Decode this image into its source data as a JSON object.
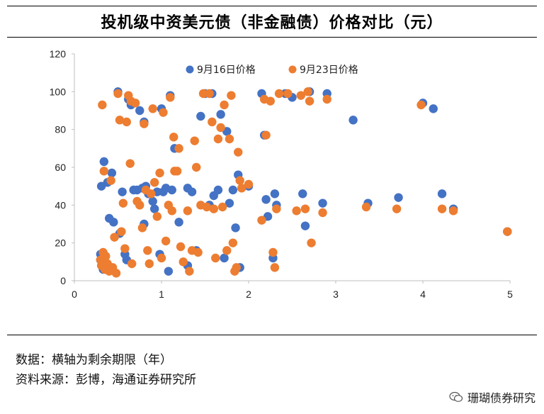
{
  "figure": {
    "title": "投机级中资美元债（非金融债）价格对比（元）",
    "note_data": "数据：横轴为剩余期限（年）",
    "note_source": "资料来源：彭博，海通证券研究所",
    "watermark": "珊瑚债券研究"
  },
  "chart_data": {
    "type": "scatter",
    "xlim": [
      0,
      5
    ],
    "ylim": [
      0,
      120
    ],
    "x_ticks": [
      0,
      1,
      2,
      3,
      4,
      5
    ],
    "y_ticks": [
      0,
      20,
      40,
      60,
      80,
      100,
      120
    ],
    "grid": false,
    "legend_position": "top-center",
    "series": [
      {
        "name": "9月16日价格",
        "color": "#4472C4",
        "points": [
          [
            0.3,
            14
          ],
          [
            0.3,
            11
          ],
          [
            0.31,
            50
          ],
          [
            0.32,
            8
          ],
          [
            0.33,
            6
          ],
          [
            0.34,
            63
          ],
          [
            0.36,
            6
          ],
          [
            0.38,
            52
          ],
          [
            0.4,
            33
          ],
          [
            0.42,
            7
          ],
          [
            0.43,
            57
          ],
          [
            0.45,
            31
          ],
          [
            0.5,
            100
          ],
          [
            0.52,
            25
          ],
          [
            0.55,
            47
          ],
          [
            0.58,
            14
          ],
          [
            0.6,
            11
          ],
          [
            0.62,
            96
          ],
          [
            0.65,
            93
          ],
          [
            0.68,
            48
          ],
          [
            0.72,
            48
          ],
          [
            0.75,
            90
          ],
          [
            0.78,
            49
          ],
          [
            0.8,
            84
          ],
          [
            0.82,
            50
          ],
          [
            0.8,
            30
          ],
          [
            0.85,
            46
          ],
          [
            0.9,
            42
          ],
          [
            0.92,
            38
          ],
          [
            0.95,
            47
          ],
          [
            0.98,
            14
          ],
          [
            1.0,
            91
          ],
          [
            1.02,
            47
          ],
          [
            1.05,
            49
          ],
          [
            1.08,
            5
          ],
          [
            1.1,
            98
          ],
          [
            1.12,
            48
          ],
          [
            1.15,
            70
          ],
          [
            1.2,
            31
          ],
          [
            1.3,
            49
          ],
          [
            1.3,
            8
          ],
          [
            1.35,
            47
          ],
          [
            1.4,
            16
          ],
          [
            1.45,
            87
          ],
          [
            1.5,
            99
          ],
          [
            1.55,
            40
          ],
          [
            1.58,
            99
          ],
          [
            1.6,
            45
          ],
          [
            1.65,
            48
          ],
          [
            1.68,
            88
          ],
          [
            1.72,
            12
          ],
          [
            1.75,
            79
          ],
          [
            1.78,
            41
          ],
          [
            1.82,
            48
          ],
          [
            1.85,
            28
          ],
          [
            1.88,
            56
          ],
          [
            1.9,
            7
          ],
          [
            2.0,
            50
          ],
          [
            2.15,
            99
          ],
          [
            2.18,
            77
          ],
          [
            2.2,
            43
          ],
          [
            2.22,
            34
          ],
          [
            2.28,
            12
          ],
          [
            2.3,
            46
          ],
          [
            2.32,
            40
          ],
          [
            2.42,
            99
          ],
          [
            2.5,
            97
          ],
          [
            2.62,
            46
          ],
          [
            2.65,
            29
          ],
          [
            2.7,
            100
          ],
          [
            2.85,
            41
          ],
          [
            2.9,
            99
          ],
          [
            3.2,
            85
          ],
          [
            3.37,
            41
          ],
          [
            3.72,
            44
          ],
          [
            4.0,
            94
          ],
          [
            4.12,
            91
          ],
          [
            4.22,
            46
          ],
          [
            4.35,
            38
          ],
          [
            4.97,
            26
          ]
        ]
      },
      {
        "name": "9月23日价格",
        "color": "#ED7D31",
        "points": [
          [
            0.3,
            11
          ],
          [
            0.31,
            8
          ],
          [
            0.32,
            93
          ],
          [
            0.33,
            15
          ],
          [
            0.34,
            58
          ],
          [
            0.35,
            6
          ],
          [
            0.36,
            13
          ],
          [
            0.38,
            9
          ],
          [
            0.4,
            5
          ],
          [
            0.42,
            53
          ],
          [
            0.44,
            7
          ],
          [
            0.46,
            23
          ],
          [
            0.48,
            4
          ],
          [
            0.5,
            99
          ],
          [
            0.52,
            85
          ],
          [
            0.54,
            26
          ],
          [
            0.56,
            41
          ],
          [
            0.58,
            17
          ],
          [
            0.6,
            84
          ],
          [
            0.62,
            98
          ],
          [
            0.64,
            62
          ],
          [
            0.65,
            95
          ],
          [
            0.66,
            9
          ],
          [
            0.7,
            94
          ],
          [
            0.72,
            42
          ],
          [
            0.75,
            40
          ],
          [
            0.78,
            28
          ],
          [
            0.8,
            83
          ],
          [
            0.82,
            48
          ],
          [
            0.84,
            16
          ],
          [
            0.86,
            9
          ],
          [
            0.88,
            46
          ],
          [
            0.9,
            91
          ],
          [
            0.92,
            52
          ],
          [
            0.95,
            34
          ],
          [
            0.98,
            57
          ],
          [
            1.0,
            12
          ],
          [
            1.02,
            89
          ],
          [
            1.05,
            21
          ],
          [
            1.08,
            40
          ],
          [
            1.1,
            97
          ],
          [
            1.12,
            37
          ],
          [
            1.14,
            76
          ],
          [
            1.15,
            58
          ],
          [
            1.18,
            58
          ],
          [
            1.2,
            70
          ],
          [
            1.22,
            18
          ],
          [
            1.25,
            10
          ],
          [
            1.3,
            37
          ],
          [
            1.32,
            5
          ],
          [
            1.35,
            16
          ],
          [
            1.38,
            74
          ],
          [
            1.4,
            60
          ],
          [
            1.42,
            15
          ],
          [
            1.45,
            40
          ],
          [
            1.48,
            99
          ],
          [
            1.52,
            39
          ],
          [
            1.55,
            99
          ],
          [
            1.58,
            84
          ],
          [
            1.6,
            38
          ],
          [
            1.62,
            12
          ],
          [
            1.65,
            75
          ],
          [
            1.68,
            81
          ],
          [
            1.7,
            39
          ],
          [
            1.72,
            93
          ],
          [
            1.75,
            16
          ],
          [
            1.78,
            75
          ],
          [
            1.8,
            98
          ],
          [
            1.82,
            20
          ],
          [
            1.84,
            5
          ],
          [
            1.86,
            7
          ],
          [
            1.88,
            68
          ],
          [
            1.9,
            53
          ],
          [
            1.92,
            49
          ],
          [
            2.0,
            51
          ],
          [
            2.15,
            32
          ],
          [
            2.18,
            96
          ],
          [
            2.2,
            77
          ],
          [
            2.25,
            95
          ],
          [
            2.28,
            15
          ],
          [
            2.3,
            7
          ],
          [
            2.32,
            38
          ],
          [
            2.35,
            99
          ],
          [
            2.45,
            99
          ],
          [
            2.55,
            37
          ],
          [
            2.6,
            98
          ],
          [
            2.65,
            38
          ],
          [
            2.68,
            100
          ],
          [
            2.7,
            95
          ],
          [
            2.72,
            20
          ],
          [
            2.85,
            36
          ],
          [
            2.9,
            96
          ],
          [
            3.35,
            39
          ],
          [
            3.7,
            38
          ],
          [
            3.98,
            93
          ],
          [
            4.22,
            38
          ],
          [
            4.35,
            37
          ],
          [
            4.97,
            26
          ]
        ]
      }
    ]
  }
}
